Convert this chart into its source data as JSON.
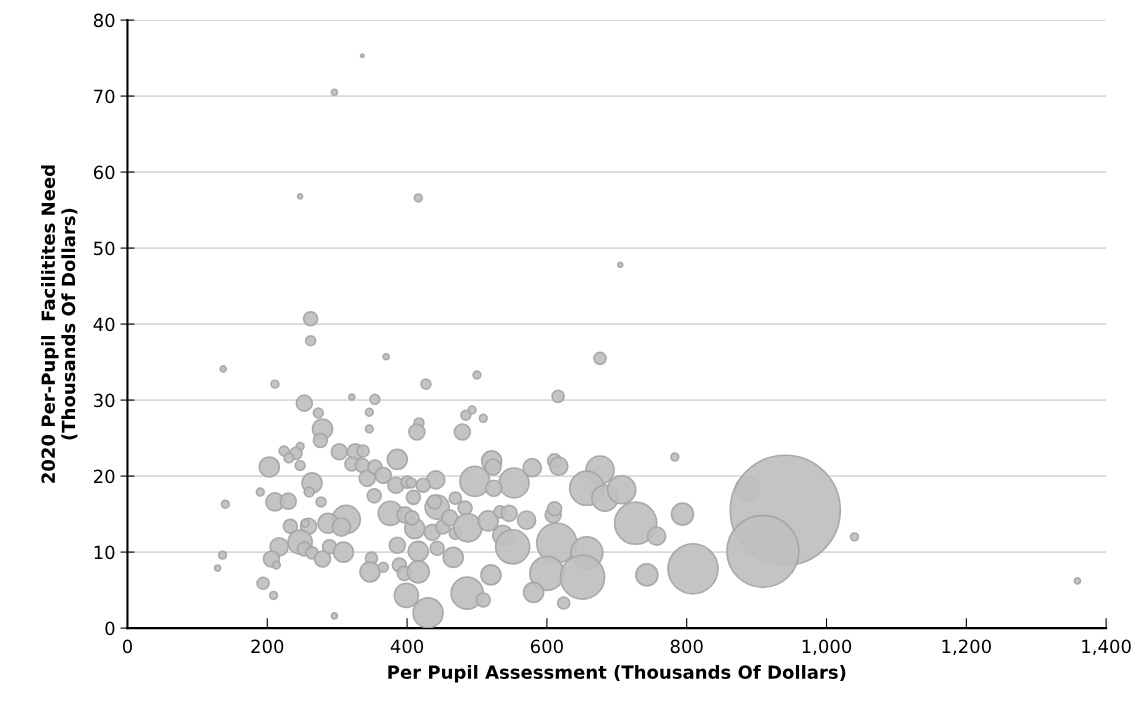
{
  "chart_data": {
    "type": "bubble",
    "xlabel": "Per Pupil Assessment (Thousands Of Dollars)",
    "ylabel": "2020 Per-Pupil  Facilitites Need\n(Thousands Of Dollars)",
    "xlim": [
      0,
      1400
    ],
    "xticks": [
      0,
      200,
      400,
      600,
      800,
      {
        "value": 1000,
        "label": "1,000"
      },
      {
        "value": 1200,
        "label": "1,200"
      },
      {
        "value": 1400,
        "label": "1,400"
      }
    ],
    "ylim": [
      0,
      80
    ],
    "yticks": [
      0,
      10,
      20,
      30,
      40,
      50,
      60,
      70,
      80
    ],
    "grid": "y",
    "series": [
      {
        "color": "#bfbfbf",
        "x": [
          336,
          296,
          247,
          416,
          705,
          262,
          262,
          137,
          211,
          253,
          321,
          354,
          273,
          346,
          346,
          279,
          276,
          247,
          224,
          241,
          231,
          247,
          203,
          303,
          326,
          337,
          321,
          336,
          343,
          264,
          260,
          190,
          211,
          230,
          277,
          140,
          353,
          313,
          287,
          306,
          259,
          254,
          233,
          247,
          217,
          289,
          309,
          253,
          264,
          206,
          279,
          213,
          349,
          136,
          129,
          347,
          194,
          209,
          296,
          370,
          676,
          427,
          500,
          616,
          417,
          414,
          493,
          484,
          509,
          479,
          386,
          521,
          523,
          354,
          366,
          384,
          400,
          406,
          441,
          423,
          497,
          553,
          524,
          579,
          611,
          617,
          676,
          657,
          683,
          409,
          443,
          439,
          469,
          483,
          376,
          397,
          411,
          407,
          436,
          451,
          461,
          469,
          487,
          516,
          533,
          546,
          571,
          609,
          611,
          537,
          551,
          614,
          657,
          600,
          651,
          581,
          624,
          386,
          443,
          416,
          466,
          389,
          366,
          396,
          416,
          399,
          430,
          486,
          509,
          520,
          783,
          707,
          727,
          757,
          794,
          743,
          809,
          887,
          941,
          909,
          1040,
          1359
        ],
        "values": [
          75.3,
          70.5,
          56.8,
          56.6,
          47.8,
          40.7,
          37.8,
          34.1,
          32.1,
          29.6,
          30.4,
          30.1,
          28.3,
          28.4,
          26.2,
          26.2,
          24.7,
          23.9,
          23.3,
          23.0,
          22.4,
          21.4,
          21.2,
          23.2,
          23.2,
          23.3,
          21.6,
          21.4,
          19.7,
          19.1,
          17.9,
          17.9,
          16.6,
          16.7,
          16.6,
          16.3,
          17.4,
          14.3,
          13.8,
          13.3,
          13.4,
          13.8,
          13.4,
          11.3,
          10.7,
          10.7,
          10.0,
          10.4,
          9.9,
          9.1,
          9.1,
          8.3,
          9.2,
          9.6,
          7.9,
          7.4,
          5.9,
          4.3,
          1.6,
          35.7,
          35.5,
          32.1,
          33.3,
          30.5,
          27.0,
          25.8,
          28.7,
          28.0,
          27.6,
          25.8,
          22.2,
          22.0,
          21.2,
          21.2,
          20.1,
          18.8,
          19.2,
          19.1,
          19.5,
          18.8,
          19.3,
          19.1,
          18.4,
          21.1,
          22.0,
          21.3,
          20.8,
          18.4,
          17.1,
          17.2,
          15.9,
          16.6,
          17.1,
          15.8,
          15.1,
          14.9,
          13.1,
          14.5,
          12.6,
          13.3,
          14.5,
          12.5,
          13.2,
          14.1,
          15.3,
          15.1,
          14.2,
          14.9,
          15.7,
          12.2,
          10.7,
          11.2,
          9.9,
          7.2,
          6.7,
          4.7,
          3.3,
          10.9,
          10.5,
          10.1,
          9.3,
          8.3,
          8.0,
          7.2,
          7.4,
          4.3,
          2.0,
          4.6,
          3.7,
          7.0,
          22.5,
          18.2,
          13.8,
          12.1,
          15.0,
          7.0,
          7.8,
          18.3,
          15.5,
          10.1,
          12.0,
          6.2
        ],
        "sizes": [
          0.001,
          0.003,
          0.002,
          0.005,
          0.002,
          0.016,
          0.008,
          0.003,
          0.005,
          0.021,
          0.003,
          0.008,
          0.008,
          0.005,
          0.005,
          0.033,
          0.016,
          0.005,
          0.008,
          0.012,
          0.008,
          0.008,
          0.033,
          0.021,
          0.021,
          0.012,
          0.016,
          0.016,
          0.021,
          0.033,
          0.008,
          0.005,
          0.027,
          0.021,
          0.008,
          0.005,
          0.016,
          0.065,
          0.033,
          0.027,
          0.021,
          0.005,
          0.016,
          0.048,
          0.027,
          0.016,
          0.033,
          0.016,
          0.012,
          0.021,
          0.021,
          0.005,
          0.012,
          0.005,
          0.003,
          0.033,
          0.012,
          0.005,
          0.003,
          0.003,
          0.012,
          0.008,
          0.005,
          0.012,
          0.008,
          0.021,
          0.005,
          0.008,
          0.005,
          0.021,
          0.033,
          0.033,
          0.021,
          0.016,
          0.021,
          0.021,
          0.012,
          0.008,
          0.027,
          0.016,
          0.074,
          0.074,
          0.021,
          0.027,
          0.016,
          0.027,
          0.065,
          0.096,
          0.056,
          0.016,
          0.048,
          0.016,
          0.012,
          0.016,
          0.048,
          0.021,
          0.033,
          0.016,
          0.021,
          0.016,
          0.021,
          0.012,
          0.065,
          0.033,
          0.012,
          0.021,
          0.027,
          0.021,
          0.016,
          0.033,
          0.096,
          0.132,
          0.085,
          0.096,
          0.16,
          0.033,
          0.012,
          0.021,
          0.016,
          0.033,
          0.033,
          0.016,
          0.008,
          0.016,
          0.04,
          0.048,
          0.074,
          0.085,
          0.016,
          0.033,
          0.005,
          0.065,
          0.146,
          0.027,
          0.04,
          0.04,
          0.207,
          0.048,
          1,
          0.428,
          0.005,
          0.003
        ]
      }
    ]
  }
}
